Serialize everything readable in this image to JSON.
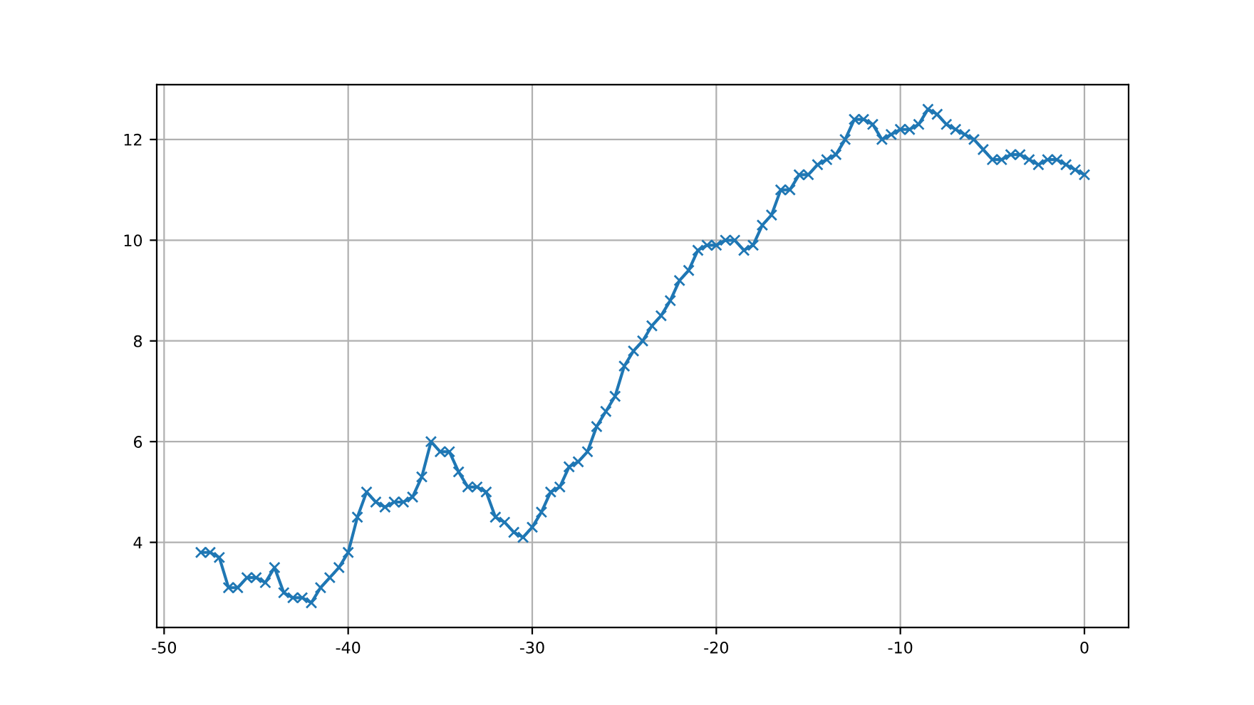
{
  "chart_data": {
    "type": "line",
    "x": [
      -48,
      -47.5,
      -47,
      -46.5,
      -46,
      -45.5,
      -45,
      -44.5,
      -44,
      -43.5,
      -43,
      -42.5,
      -42,
      -41.5,
      -41,
      -40.5,
      -40,
      -39.5,
      -39,
      -38.5,
      -38,
      -37.5,
      -37,
      -36.5,
      -36,
      -35.5,
      -35,
      -34.5,
      -34,
      -33.5,
      -33,
      -32.5,
      -32,
      -31.5,
      -31,
      -30.5,
      -30,
      -29.5,
      -29,
      -28.5,
      -28,
      -27.5,
      -27,
      -26.5,
      -26,
      -25.5,
      -25,
      -24.5,
      -24,
      -23.5,
      -23,
      -22.5,
      -22,
      -21.5,
      -21,
      -20.5,
      -20,
      -19.5,
      -19,
      -18.5,
      -18,
      -17.5,
      -17,
      -16.5,
      -16,
      -15.5,
      -15,
      -14.5,
      -14,
      -13.5,
      -13,
      -12.5,
      -12,
      -11.5,
      -11,
      -10.5,
      -10,
      -9.5,
      -9,
      -8.5,
      -8,
      -7.5,
      -7,
      -6.5,
      -6,
      -5.5,
      -5,
      -4.5,
      -4,
      -3.5,
      -3,
      -2.5,
      -2,
      -1.5,
      -1,
      -0.5,
      0
    ],
    "series": [
      {
        "color": "#1f77b4",
        "values": [
          3.8,
          3.8,
          3.7,
          3.1,
          3.1,
          3.3,
          3.3,
          3.2,
          3.5,
          3.0,
          2.9,
          2.9,
          2.8,
          3.1,
          3.3,
          3.5,
          3.8,
          4.5,
          5.0,
          4.8,
          4.7,
          4.8,
          4.8,
          4.9,
          5.3,
          6.0,
          5.8,
          5.8,
          5.4,
          5.1,
          5.1,
          5.0,
          4.5,
          4.4,
          4.2,
          4.1,
          4.3,
          4.6,
          5.0,
          5.1,
          5.5,
          5.6,
          5.8,
          6.3,
          6.6,
          6.9,
          7.5,
          7.8,
          8.0,
          8.3,
          8.5,
          8.8,
          9.2,
          9.4,
          9.8,
          9.9,
          9.9,
          10.0,
          10.0,
          9.8,
          9.9,
          10.3,
          10.5,
          11.0,
          11.0,
          11.3,
          11.3,
          11.5,
          11.6,
          11.7,
          12.0,
          12.4,
          12.4,
          12.3,
          12.0,
          12.1,
          12.2,
          12.2,
          12.3,
          12.6,
          12.5,
          12.3,
          12.2,
          12.1,
          12.0,
          11.8,
          11.6,
          11.6,
          11.7,
          11.7,
          11.6,
          11.5,
          11.6,
          11.6,
          11.5,
          11.4,
          11.3
        ]
      }
    ],
    "xlim": [
      -50.4,
      2.4
    ],
    "xticks": [
      -50,
      -40,
      -30,
      -20,
      -10,
      0
    ],
    "ylim": [
      2.31,
      13.09
    ],
    "yticks": [
      4,
      6,
      8,
      10,
      12
    ],
    "grid": true,
    "marker": "cross",
    "line_style": "solid"
  }
}
